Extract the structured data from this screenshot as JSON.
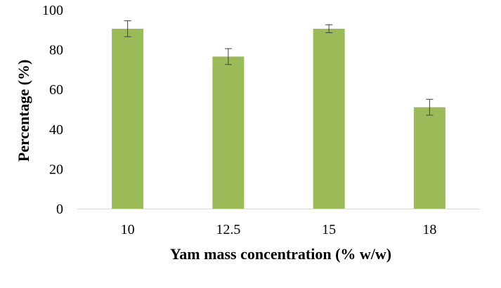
{
  "chart_data": {
    "type": "bar",
    "title": "",
    "xlabel": "Yam mass concentration (% w/w)",
    "ylabel": "Percentage (%)",
    "categories": [
      "10",
      "12.5",
      "15",
      "18"
    ],
    "values": [
      90.5,
      76.5,
      90.5,
      51
    ],
    "error": [
      4,
      4,
      2,
      4
    ],
    "ylim": [
      0,
      100
    ],
    "yticks": [
      0,
      20,
      40,
      60,
      80,
      100
    ],
    "grid": false,
    "legend": "none",
    "colors": {
      "bar": "#9BBB59",
      "axis": "#d9d9d9",
      "error_bar": "#404040"
    }
  }
}
